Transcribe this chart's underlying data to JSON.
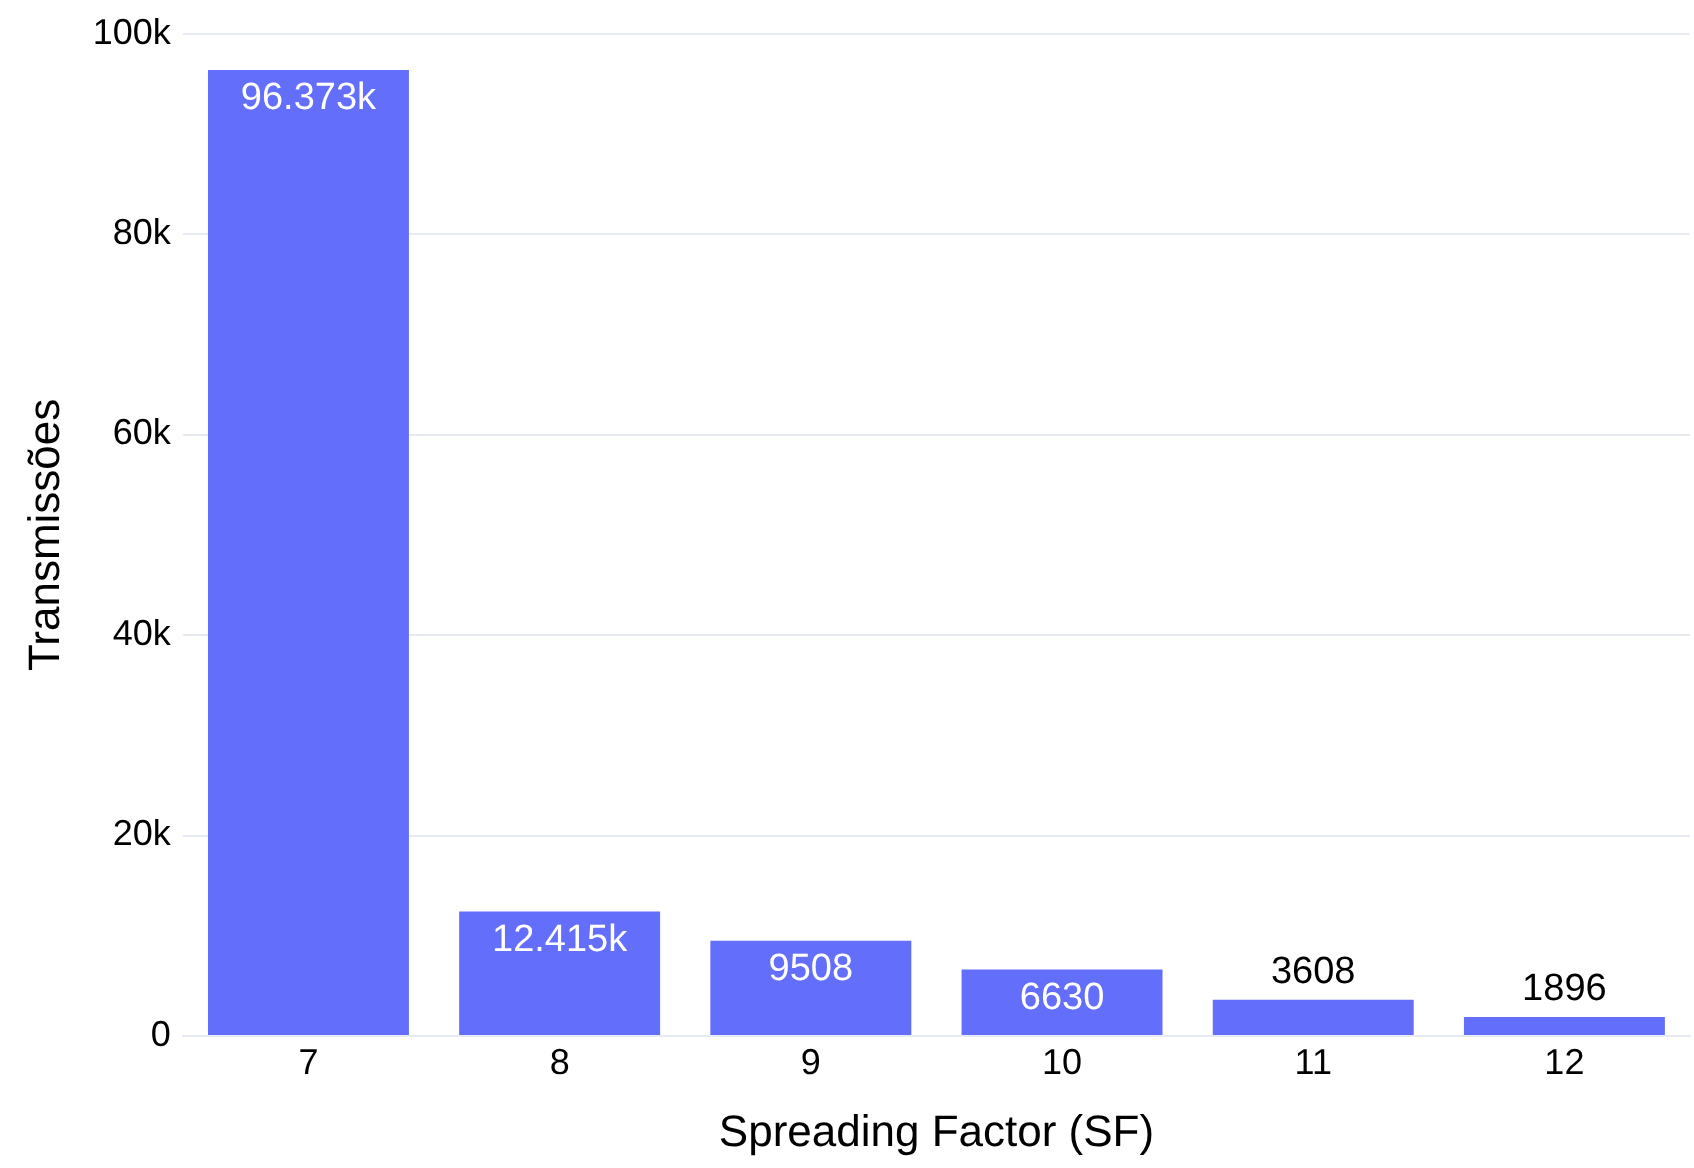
{
  "chart_data": {
    "type": "bar",
    "xlabel": "Spreading Factor (SF)",
    "ylabel": "Transmissões",
    "categories": [
      "7",
      "8",
      "9",
      "10",
      "11",
      "12"
    ],
    "values": [
      96373,
      12415,
      9508,
      6630,
      3608,
      1896
    ],
    "value_labels": [
      "96.373k",
      "12.415k",
      "9508",
      "6630",
      "3608",
      "1896"
    ],
    "color": "#636efa",
    "ylim": [
      0,
      100000
    ],
    "yticks": [
      {
        "value": 0,
        "label": "0"
      },
      {
        "value": 20000,
        "label": "20k"
      },
      {
        "value": 40000,
        "label": "40k"
      },
      {
        "value": 60000,
        "label": "60k"
      },
      {
        "value": 80000,
        "label": "80k"
      },
      {
        "value": 100000,
        "label": "100k"
      }
    ],
    "grid": "y"
  }
}
